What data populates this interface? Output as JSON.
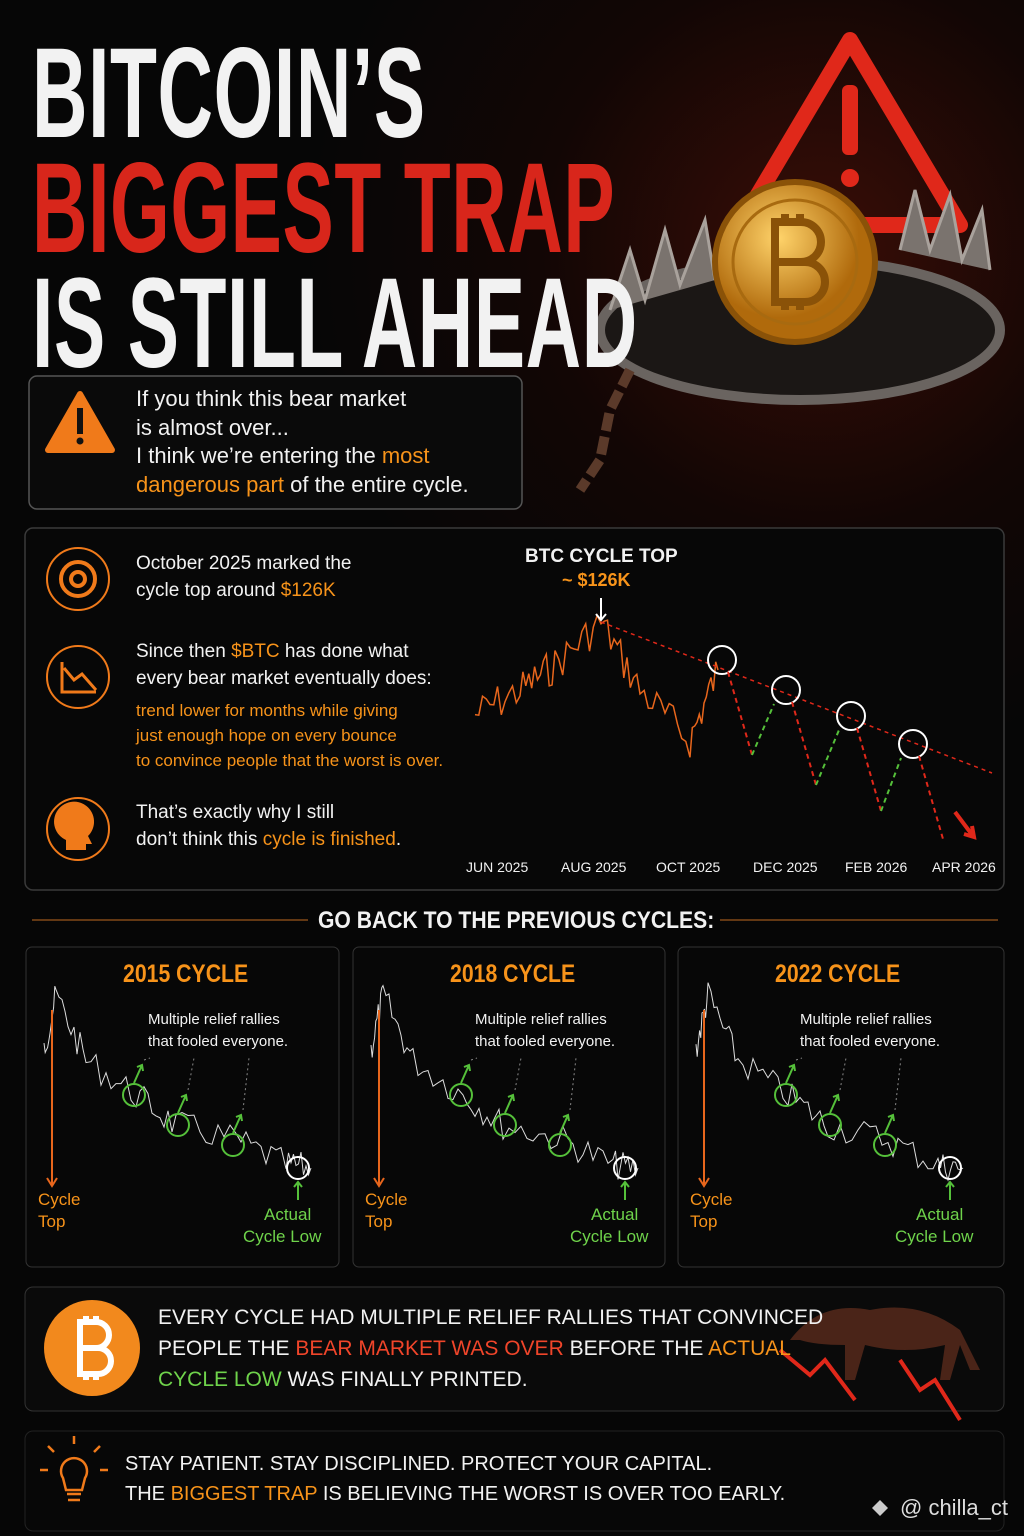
{
  "header": {
    "title_lines": [
      "BITCOIN’S",
      "BIGGEST TRAP",
      "IS STILL AHEAD"
    ]
  },
  "intro": [
    [
      {
        "text": "If you think this bear market",
        "color": "white"
      }
    ],
    [
      {
        "text": "is almost over...",
        "color": "white"
      }
    ],
    [
      {
        "text": "I think we’re entering the ",
        "color": "white"
      },
      {
        "text": "most",
        "color": "orange"
      }
    ],
    [
      {
        "text": "dangerous part",
        "color": "orange"
      },
      {
        "text": " of the entire cycle.",
        "color": "white"
      }
    ]
  ],
  "points": [
    {
      "lines": [
        [
          {
            "text": "October 2025 marked the",
            "color": "white"
          }
        ],
        [
          {
            "text": "cycle top around ",
            "color": "white"
          },
          {
            "text": "$126K",
            "color": "orange"
          }
        ]
      ]
    },
    {
      "lines": [
        [
          {
            "text": "Since then ",
            "color": "white"
          },
          {
            "text": "$BTC",
            "color": "orange"
          },
          {
            "text": " has done what",
            "color": "white"
          }
        ],
        [
          {
            "text": "every bear market eventually does:",
            "color": "white"
          }
        ]
      ],
      "detail_lines": [
        [
          {
            "text": "trend lower for months while giving",
            "color": "orange"
          }
        ],
        [
          {
            "text": "just enough hope on every bounce",
            "color": "orange"
          }
        ],
        [
          {
            "text": "to convince people that the worst is over.",
            "color": "orange"
          }
        ]
      ]
    },
    {
      "lines": [
        [
          {
            "text": "That’s exactly why I still",
            "color": "white"
          }
        ],
        [
          {
            "text": "don’t think this ",
            "color": "white"
          },
          {
            "text": "cycle is finished",
            "color": "orange"
          },
          {
            "text": ".",
            "color": "white"
          }
        ]
      ]
    }
  ],
  "btc_chart": {
    "top_label": "BTC CYCLE TOP",
    "top_value": "~ $126K",
    "x_labels": [
      "JUN 2025",
      "AUG 2025",
      "OCT 2025",
      "DEC 2025",
      "FEB 2026",
      "APR 2026"
    ]
  },
  "section_heading": "GO BACK TO THE PREVIOUS CYCLES:",
  "cycles": [
    {
      "title": "2015 CYCLE",
      "note_lines": [
        "Multiple relief rallies",
        "that fooled everyone."
      ],
      "top_label": [
        "Cycle",
        "Top"
      ],
      "low_label": [
        "Actual",
        "Cycle Low"
      ]
    },
    {
      "title": "2018 CYCLE",
      "note_lines": [
        "Multiple relief rallies",
        "that fooled everyone."
      ],
      "top_label": [
        "Cycle",
        "Top"
      ],
      "low_label": [
        "Actual",
        "Cycle Low"
      ]
    },
    {
      "title": "2022 CYCLE",
      "note_lines": [
        "Multiple relief rallies",
        "that fooled everyone."
      ],
      "top_label": [
        "Cycle",
        "Top"
      ],
      "low_label": [
        "Actual",
        "Cycle Low"
      ]
    }
  ],
  "summary": [
    [
      {
        "text": "EVERY CYCLE HAD MULTIPLE RELIEF RALLIES THAT CONVINCED",
        "color": "white"
      }
    ],
    [
      {
        "text": "PEOPLE THE ",
        "color": "white"
      },
      {
        "text": "BEAR MARKET WAS OVER",
        "color": "red"
      },
      {
        "text": " BEFORE THE ",
        "color": "white"
      },
      {
        "text": "ACTUAL",
        "color": "orange"
      }
    ],
    [
      {
        "text": "CYCLE LOW",
        "color": "green"
      },
      {
        "text": " WAS FINALLY PRINTED.",
        "color": "white"
      }
    ]
  ],
  "footer": [
    [
      {
        "text": "STAY PATIENT. STAY DISCIPLINED. PROTECT YOUR CAPITAL.",
        "color": "white"
      }
    ],
    [
      {
        "text": "THE ",
        "color": "white"
      },
      {
        "text": "BIGGEST TRAP",
        "color": "orange"
      },
      {
        "text": " IS BELIEVING THE WORST IS OVER TOO EARLY.",
        "color": "white"
      }
    ]
  ],
  "watermark": "@ chilla_ct"
}
